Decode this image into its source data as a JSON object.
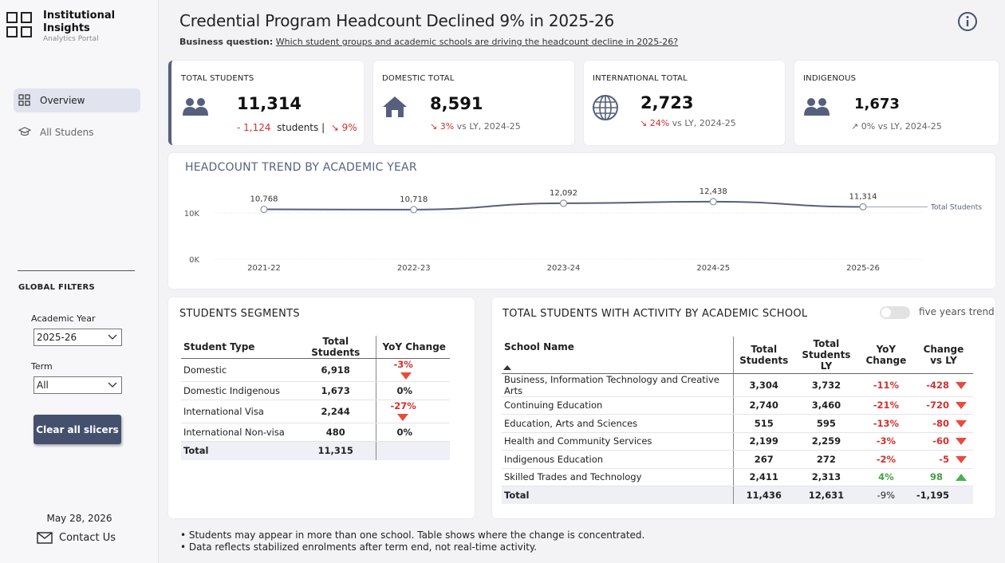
{
  "app": {
    "title_line1": "Institutional",
    "title_line2": "Insights",
    "subtitle": "Analytics Portal"
  },
  "nav": {
    "items": [
      {
        "label": "Overview",
        "icon": "grid-icon",
        "active": true
      },
      {
        "label": "All Studens",
        "icon": "graduation-cap-icon",
        "active": false
      }
    ]
  },
  "filters": {
    "title": "GLOBAL FILTERS",
    "academic_year_label": "Academic Year",
    "academic_year_value": "2025-26",
    "term_label": "Term",
    "term_value": "All",
    "clear_button": "Clear all slicers"
  },
  "footer": {
    "date": "May 28, 2026",
    "contact": "Contact Us"
  },
  "header": {
    "title": "Credential Program Headcount Declined 9% in 2025-26",
    "bq_label": "Business question:",
    "bq_text": "Which student groups and academic schools are driving the headcount decline  in 2025-26?"
  },
  "kpis": {
    "total": {
      "label": "TOTAL STUDENTS",
      "value": "11,314",
      "delta": "- 1,124",
      "unit": "students |",
      "pct": "↘ 9%"
    },
    "domestic": {
      "label": "DOMESTIC TOTAL",
      "value": "8,591",
      "pct": "↘ 3%",
      "suffix": "vs LY, 2024-25"
    },
    "international": {
      "label": "INTERNATIONAL TOTAL",
      "value": "2,723",
      "pct": "↘ 24%",
      "suffix": "vs LY, 2024-25"
    },
    "indigenous": {
      "label": "INDIGENOUS",
      "value": "1,673",
      "pct": "↗ 0%",
      "suffix": "vs LY, 2024-25"
    }
  },
  "trend": {
    "title": "HEADCOUNT TREND BY ACADEMIC YEAR"
  },
  "chart_data": {
    "type": "line",
    "title": "HEADCOUNT TREND BY ACADEMIC YEAR",
    "categories": [
      "2021-22",
      "2022-23",
      "2023-24",
      "2024-25",
      "2025-26"
    ],
    "series": [
      {
        "name": "Total Students",
        "values": [
          10768,
          10718,
          12092,
          12438,
          11314
        ]
      }
    ],
    "data_labels": [
      "10,768",
      "10,718",
      "12,092",
      "12,438",
      "11,314"
    ],
    "y_ticks": [
      "0K",
      "10K"
    ],
    "ylim": [
      0,
      12438
    ],
    "color": "#56607c",
    "legend": "right"
  },
  "segments": {
    "title": "STUDENTS SEGMENTS",
    "headers": [
      "Student Type",
      "Total Students",
      "YoY Change"
    ],
    "rows": [
      {
        "type": "Domestic",
        "total": "6,918",
        "yoy": "-3%",
        "trend": "down"
      },
      {
        "type": "Domestic Indigenous",
        "total": "1,673",
        "yoy": "0%",
        "trend": "none"
      },
      {
        "type": "International Visa",
        "total": "2,244",
        "yoy": "-27%",
        "trend": "down"
      },
      {
        "type": "International Non-visa",
        "total": "480",
        "yoy": "0%",
        "trend": "none"
      }
    ],
    "total": {
      "label": "Total",
      "total": "11,315"
    }
  },
  "schools": {
    "title": "TOTAL STUDENTS WITH ACTIVITY BY ACADEMIC SCHOOL",
    "toggle_label": "five years trend",
    "headers": [
      "School Name",
      "Total Students",
      "Total Students LY",
      "YoY Change",
      "Change vs LY"
    ],
    "rows": [
      {
        "name": "Business, Information Technology and Creative Arts",
        "total": "3,304",
        "ly": "3,732",
        "yoy": "-11%",
        "change": "-428",
        "trend": "down"
      },
      {
        "name": "Continuing Education",
        "total": "2,740",
        "ly": "3,460",
        "yoy": "-21%",
        "change": "-720",
        "trend": "down"
      },
      {
        "name": "Education, Arts and Sciences",
        "total": "515",
        "ly": "595",
        "yoy": "-13%",
        "change": "-80",
        "trend": "down"
      },
      {
        "name": "Health and Community Services",
        "total": "2,199",
        "ly": "2,259",
        "yoy": "-3%",
        "change": "-60",
        "trend": "down"
      },
      {
        "name": "Indigenous Education",
        "total": "267",
        "ly": "272",
        "yoy": "-2%",
        "change": "-5",
        "trend": "down"
      },
      {
        "name": "Skilled Trades and Technology",
        "total": "2,411",
        "ly": "2,313",
        "yoy": "4%",
        "change": "98",
        "trend": "up"
      }
    ],
    "total": {
      "label": "Total",
      "total": "11,436",
      "ly": "12,631",
      "yoy": "-9%",
      "change": "-1,195"
    }
  },
  "notes": [
    "Students may appear in more than one school. Table shows where the change is concentrated.",
    "Data reflects stabilized enrolments after term end, not real-time activity."
  ]
}
